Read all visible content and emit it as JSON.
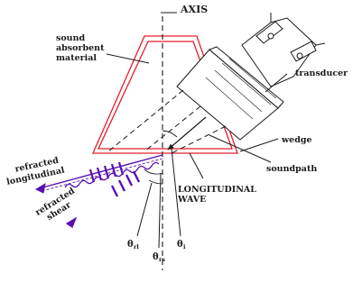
{
  "colors": {
    "wedge": "#e31e2d",
    "beam": "#5a10b0",
    "line": "#1a1a1a",
    "background": "#ffffff"
  },
  "labels": {
    "axis": "AXIS",
    "absorbent_line1": "sound",
    "absorbent_line2": "absorbent",
    "absorbent_line3": "material",
    "transducer": "transducer",
    "wedge": "wedge",
    "soundpath": "soundpath",
    "wave_line1": "LONGITUDINAL",
    "wave_line2": "WAVE",
    "refracted_long_line1": "refracted",
    "refracted_long_line2": "longitudinal",
    "refracted_shear_line1": "refracted",
    "refracted_shear_line2": "shear"
  },
  "angles": {
    "theta_rl": {
      "symbol": "θ",
      "subscript": "rl"
    },
    "theta_rs": {
      "symbol": "θ",
      "subscript": "rs"
    },
    "theta_i": {
      "symbol": "θ",
      "subscript": "i"
    }
  }
}
